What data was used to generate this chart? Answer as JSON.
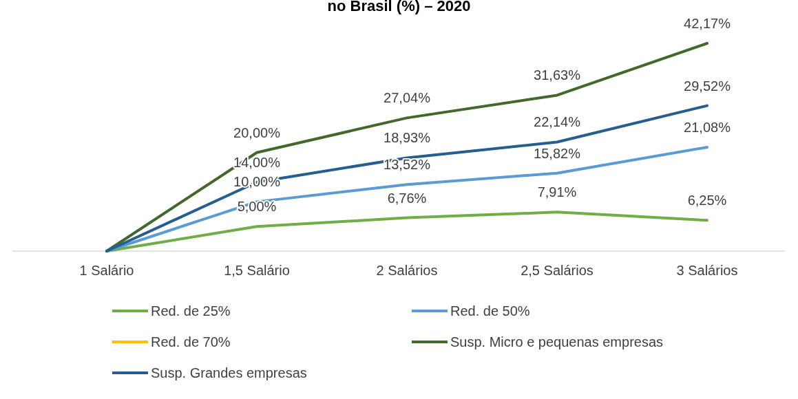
{
  "chart_data": {
    "type": "line",
    "title": "no Brasil (%) – 2020",
    "categories": [
      "1 Salário",
      "1,5 Salário",
      "2 Salários",
      "2,5 Salários",
      "3 Salários"
    ],
    "series": [
      {
        "name": "Red. de 25%",
        "color": "#70ad47",
        "values": [
          0,
          5,
          6.76,
          7.91,
          6.25
        ],
        "value_labels": [
          null,
          "5,00%",
          "6,76%",
          "7,91%",
          "6,25%"
        ]
      },
      {
        "name": "Red. de 50%",
        "color": "#5b9bd5",
        "values": [
          0,
          10,
          13.52,
          15.82,
          21.08
        ],
        "value_labels": [
          null,
          "10,00%",
          "13,52%",
          "15,82%",
          "21,08%"
        ]
      },
      {
        "name": "Red. de 70%",
        "color": "#ffc000",
        "values": [
          null,
          null,
          null,
          null,
          null
        ]
      },
      {
        "name": "Susp. Micro e pequenas empresas",
        "color": "#43682b",
        "values": [
          0,
          20,
          27.04,
          31.63,
          42.17
        ],
        "value_labels": [
          null,
          "20,00%",
          "27,04%",
          "31,63%",
          "42,17%"
        ]
      },
      {
        "name": "Susp. Grandes empresas",
        "color": "#255e91",
        "values": [
          0,
          14,
          18.93,
          22.14,
          29.52
        ],
        "value_labels": [
          null,
          "14,00%",
          "18,93%",
          "22,14%",
          "29,52%"
        ]
      }
    ],
    "legend": "bottom",
    "marker": "none",
    "line_style": "solid"
  }
}
